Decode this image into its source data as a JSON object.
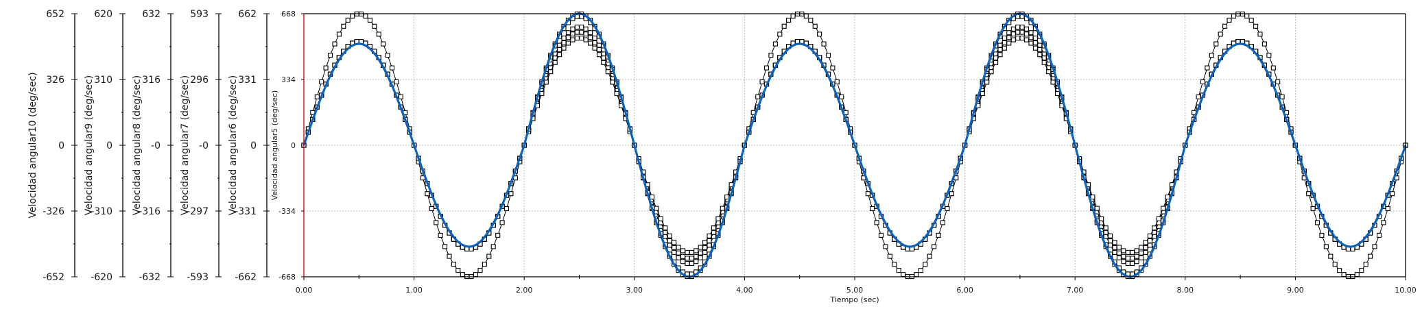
{
  "chart_data": {
    "type": "line",
    "x_axis": {
      "label": "Tiempo (sec)",
      "range": [
        0,
        10
      ],
      "ticks": [
        "0.00",
        "1.00",
        "2.00",
        "3.00",
        "4.00",
        "5.00",
        "6.00",
        "7.00",
        "8.00",
        "9.00",
        "10.00"
      ]
    },
    "y_axes": [
      {
        "label": "Velocidad angular10 (deg/sec)",
        "range": [
          -652,
          652
        ],
        "ticks": [
          "652",
          "326",
          "0",
          "-326",
          "-652"
        ]
      },
      {
        "label": "Velocidad angular9 (deg/sec)",
        "range": [
          -620,
          620
        ],
        "ticks": [
          "620",
          "310",
          "0",
          "-310",
          "-620"
        ]
      },
      {
        "label": "Velocidad angular8 (deg/sec)",
        "range": [
          -632,
          632
        ],
        "ticks": [
          "632",
          "316",
          "-0",
          "-316",
          "-632"
        ]
      },
      {
        "label": "Velocidad angular7 (deg/sec)",
        "range": [
          -593,
          593
        ],
        "ticks": [
          "593",
          "296",
          "-0",
          "-297",
          "-593"
        ]
      },
      {
        "label": "Velocidad angular6 (deg/sec)",
        "range": [
          -662,
          662
        ],
        "ticks": [
          "662",
          "331",
          "0",
          "-331",
          "-662"
        ]
      },
      {
        "label": "Velocidad angular5 (deg/sec)",
        "range": [
          -668,
          668
        ],
        "ticks": [
          "668",
          "334",
          "0",
          "-334",
          "-668"
        ]
      }
    ],
    "grid": true,
    "period_sec": 2,
    "sample_step_sec": 0.04,
    "series": [
      {
        "y_axis": 0,
        "color": "#000000",
        "markers": "square",
        "cycle_peaks": [
          652,
          652,
          652,
          652,
          652
        ]
      },
      {
        "y_axis": 1,
        "color": "#000000",
        "markers": "square",
        "cycle_peaks": [
          490,
          558,
          490,
          558,
          490
        ]
      },
      {
        "y_axis": 2,
        "color": "#000000",
        "markers": "square",
        "cycle_peaks": [
          499,
          544,
          499,
          544,
          499
        ]
      },
      {
        "y_axis": 3,
        "color": "#000000",
        "markers": "square",
        "cycle_peaks": [
          468,
          484,
          468,
          484,
          468
        ]
      },
      {
        "y_axis": 4,
        "color": "#000000",
        "markers": "square",
        "cycle_peaks": [
          523,
          649,
          523,
          649,
          523
        ]
      },
      {
        "y_axis": 5,
        "color": "#0a64bf",
        "markers": "none",
        "cycle_peaks": [
          515,
          668,
          515,
          668,
          515
        ]
      }
    ]
  }
}
